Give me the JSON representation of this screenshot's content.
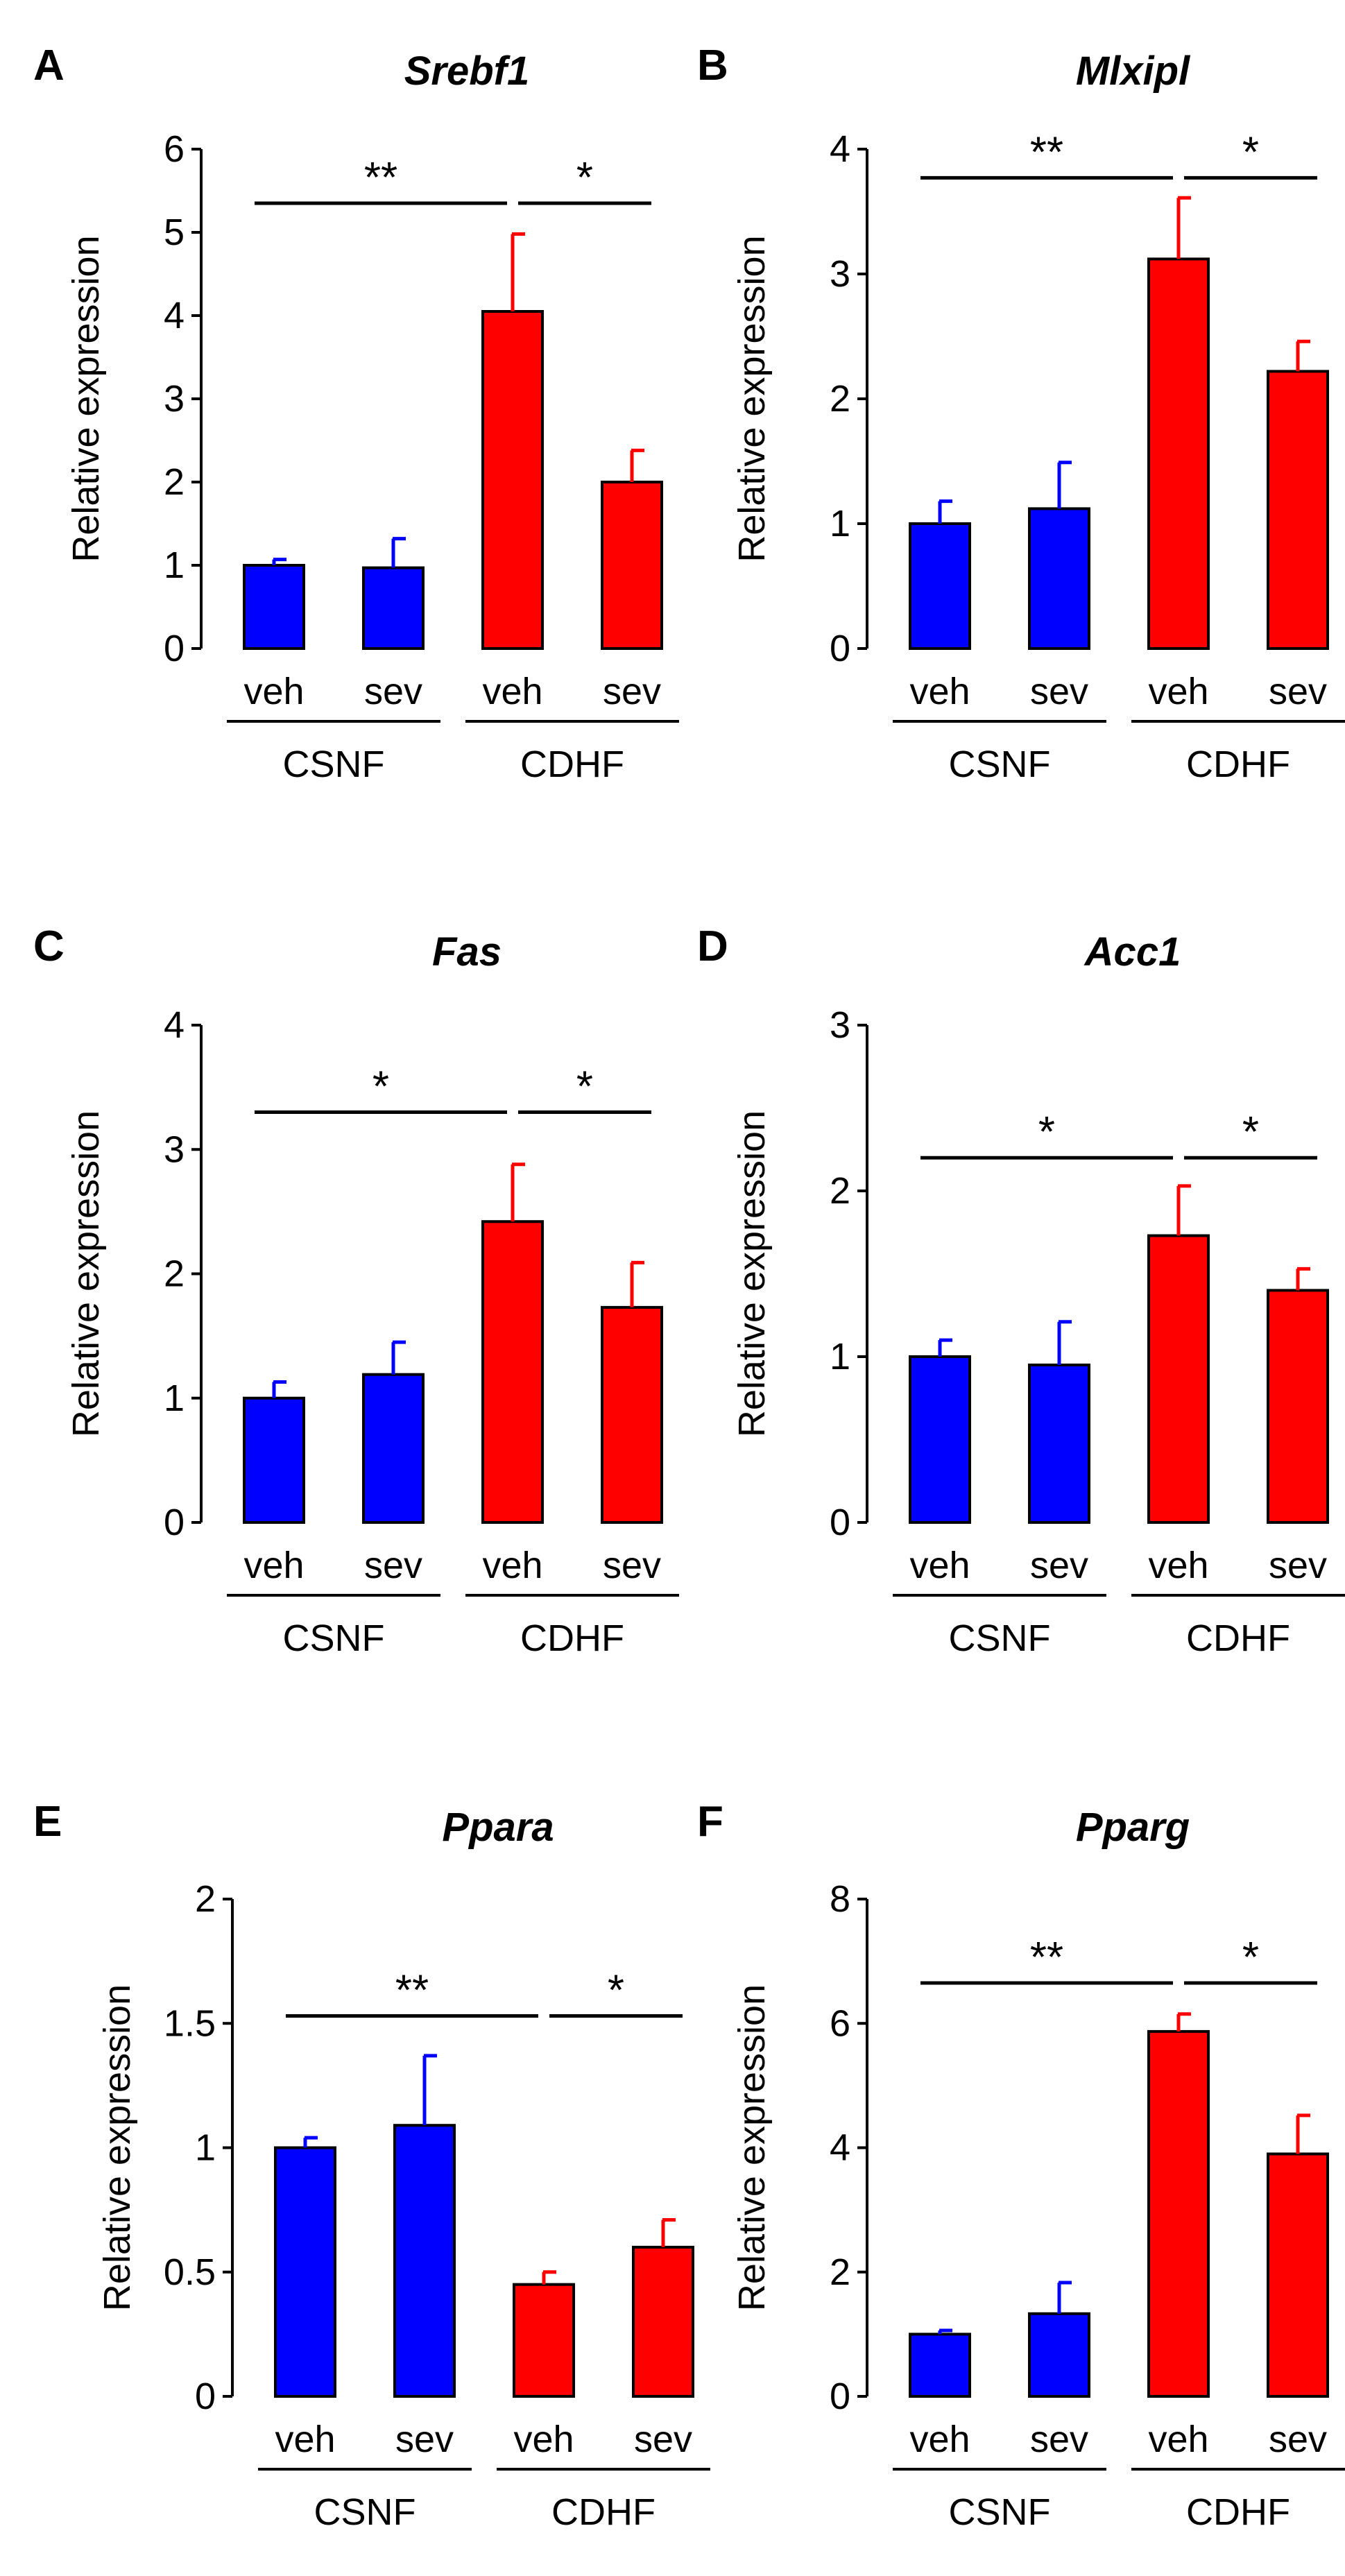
{
  "colors": {
    "csnf": "#0000ff",
    "cdhf": "#ff0000",
    "axis": "#000000"
  },
  "chart_data": [
    {
      "panel": "A",
      "title": "Srebf1",
      "type": "bar",
      "ylabel": "Relative expression",
      "ylim": [
        0,
        6
      ],
      "yticks": [
        0,
        1,
        2,
        3,
        4,
        5,
        6
      ],
      "ytick_labels": [
        "0",
        "1",
        "2",
        "3",
        "4",
        "5",
        "6"
      ],
      "categories": [
        "veh",
        "sev",
        "veh",
        "sev"
      ],
      "groups": [
        "CSNF",
        "CDHF"
      ],
      "values": [
        1.0,
        0.97,
        4.05,
        2.0
      ],
      "errors": [
        0.07,
        0.35,
        0.93,
        0.38
      ],
      "significance": [
        {
          "from": 0,
          "to": 2,
          "label": "**",
          "y": 5.35
        },
        {
          "from": 2,
          "to": 3,
          "label": "*",
          "y": 5.35
        }
      ]
    },
    {
      "panel": "B",
      "title": "Mlxipl",
      "type": "bar",
      "ylabel": "Relative expression",
      "ylim": [
        0,
        4
      ],
      "yticks": [
        0,
        1,
        2,
        3,
        4
      ],
      "ytick_labels": [
        "0",
        "1",
        "2",
        "3",
        "4"
      ],
      "categories": [
        "veh",
        "sev",
        "veh",
        "sev"
      ],
      "groups": [
        "CSNF",
        "CDHF"
      ],
      "values": [
        1.0,
        1.12,
        3.12,
        2.22
      ],
      "errors": [
        0.18,
        0.37,
        0.49,
        0.24
      ],
      "significance": [
        {
          "from": 0,
          "to": 2,
          "label": "**",
          "y": 3.77
        },
        {
          "from": 2,
          "to": 3,
          "label": "*",
          "y": 3.77
        }
      ]
    },
    {
      "panel": "C",
      "title": "Fas",
      "type": "bar",
      "ylabel": "Relative expression",
      "ylim": [
        0,
        4
      ],
      "yticks": [
        0,
        1,
        2,
        3,
        4
      ],
      "ytick_labels": [
        "0",
        "1",
        "2",
        "3",
        "4"
      ],
      "categories": [
        "veh",
        "sev",
        "veh",
        "sev"
      ],
      "groups": [
        "CSNF",
        "CDHF"
      ],
      "values": [
        1.0,
        1.19,
        2.42,
        1.73
      ],
      "errors": [
        0.13,
        0.26,
        0.46,
        0.36
      ],
      "significance": [
        {
          "from": 0,
          "to": 2,
          "label": "*",
          "y": 3.3
        },
        {
          "from": 2,
          "to": 3,
          "label": "*",
          "y": 3.3
        }
      ]
    },
    {
      "panel": "D",
      "title": "Acc1",
      "type": "bar",
      "ylabel": "Relative expression",
      "ylim": [
        0,
        3
      ],
      "yticks": [
        0,
        1,
        2,
        3
      ],
      "ytick_labels": [
        "0",
        "1",
        "2",
        "3"
      ],
      "categories": [
        "veh",
        "sev",
        "veh",
        "sev"
      ],
      "groups": [
        "CSNF",
        "CDHF"
      ],
      "values": [
        1.0,
        0.95,
        1.73,
        1.4
      ],
      "errors": [
        0.1,
        0.26,
        0.3,
        0.13
      ],
      "significance": [
        {
          "from": 0,
          "to": 2,
          "label": "*",
          "y": 2.2
        },
        {
          "from": 2,
          "to": 3,
          "label": "*",
          "y": 2.2
        }
      ]
    },
    {
      "panel": "E",
      "title": "Ppara",
      "type": "bar",
      "ylabel": "Relative expression",
      "ylim": [
        0,
        2
      ],
      "yticks": [
        0,
        0.5,
        1,
        1.5,
        2
      ],
      "ytick_labels": [
        "0",
        "0.5",
        "1",
        "1.5",
        "2"
      ],
      "categories": [
        "veh",
        "sev",
        "veh",
        "sev"
      ],
      "groups": [
        "CSNF",
        "CDHF"
      ],
      "values": [
        1.0,
        1.09,
        0.45,
        0.6
      ],
      "errors": [
        0.04,
        0.28,
        0.05,
        0.11
      ],
      "significance": [
        {
          "from": 0,
          "to": 2,
          "label": "**",
          "y": 1.53
        },
        {
          "from": 2,
          "to": 3,
          "label": "*",
          "y": 1.53
        }
      ]
    },
    {
      "panel": "F",
      "title": "Pparg",
      "type": "bar",
      "ylabel": "Relative expression",
      "ylim": [
        0,
        8
      ],
      "yticks": [
        0,
        2,
        4,
        6,
        8
      ],
      "ytick_labels": [
        "0",
        "2",
        "4",
        "6",
        "8"
      ],
      "categories": [
        "veh",
        "sev",
        "veh",
        "sev"
      ],
      "groups": [
        "CSNF",
        "CDHF"
      ],
      "values": [
        1.0,
        1.33,
        5.87,
        3.9
      ],
      "errors": [
        0.06,
        0.5,
        0.28,
        0.62
      ],
      "significance": [
        {
          "from": 0,
          "to": 2,
          "label": "**",
          "y": 6.65
        },
        {
          "from": 2,
          "to": 3,
          "label": "*",
          "y": 6.65
        }
      ]
    }
  ]
}
